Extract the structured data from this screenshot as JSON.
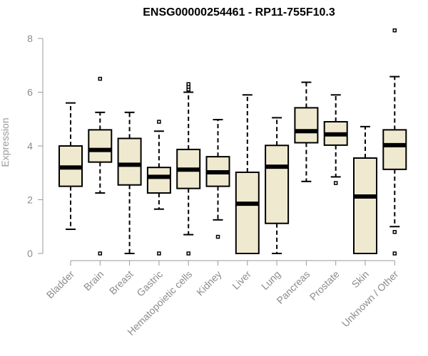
{
  "colors": {
    "box_fill": "#efe9cf",
    "stroke": "#000000",
    "axis": "#9a9a9a",
    "text": "#8c8c8c"
  },
  "chart_data": {
    "type": "boxplot",
    "title": "ENSG00000254461 - RP11-755F10.3",
    "xlabel": "",
    "ylabel": "Expression",
    "ylim": [
      0,
      8.4
    ],
    "yticks": [
      0,
      2,
      4,
      6,
      8
    ],
    "categories": [
      "Bladder",
      "Brain",
      "Breast",
      "Gastric",
      "Hematopoietic cells",
      "Kidney",
      "Liver",
      "Lung",
      "Pancreas",
      "Prostate",
      "Skin",
      "Unknown / Other"
    ],
    "boxes": [
      {
        "whisker_low": 0.9,
        "q1": 2.5,
        "median": 3.2,
        "q3": 4.0,
        "whisker_high": 5.6,
        "outliers": []
      },
      {
        "whisker_low": 2.25,
        "q1": 3.4,
        "median": 3.85,
        "q3": 4.6,
        "whisker_high": 5.25,
        "outliers": [
          0.0,
          6.5
        ]
      },
      {
        "whisker_low": 0.0,
        "q1": 2.55,
        "median": 3.3,
        "q3": 4.28,
        "whisker_high": 5.25,
        "outliers": []
      },
      {
        "whisker_low": 1.65,
        "q1": 2.25,
        "median": 2.85,
        "q3": 3.2,
        "whisker_high": 4.55,
        "outliers": [
          0.0,
          4.9
        ]
      },
      {
        "whisker_low": 0.7,
        "q1": 2.42,
        "median": 3.12,
        "q3": 3.87,
        "whisker_high": 6.0,
        "outliers": [
          0.0,
          6.1,
          6.2,
          6.3
        ]
      },
      {
        "whisker_low": 1.25,
        "q1": 2.5,
        "median": 3.02,
        "q3": 3.6,
        "whisker_high": 4.98,
        "outliers": [
          0.62
        ]
      },
      {
        "whisker_low": 0.0,
        "q1": 0.0,
        "median": 1.85,
        "q3": 3.02,
        "whisker_high": 5.9,
        "outliers": []
      },
      {
        "whisker_low": 0.0,
        "q1": 1.12,
        "median": 3.23,
        "q3": 4.02,
        "whisker_high": 5.05,
        "outliers": []
      },
      {
        "whisker_low": 2.68,
        "q1": 4.12,
        "median": 4.55,
        "q3": 5.42,
        "whisker_high": 6.37,
        "outliers": []
      },
      {
        "whisker_low": 2.85,
        "q1": 4.03,
        "median": 4.43,
        "q3": 4.9,
        "whisker_high": 5.9,
        "outliers": [
          2.62
        ]
      },
      {
        "whisker_low": 0.0,
        "q1": 0.0,
        "median": 2.12,
        "q3": 3.55,
        "whisker_high": 4.72,
        "outliers": []
      },
      {
        "whisker_low": 1.0,
        "q1": 3.13,
        "median": 4.03,
        "q3": 4.6,
        "whisker_high": 6.58,
        "outliers": [
          0.0,
          0.8,
          8.3
        ]
      }
    ]
  }
}
